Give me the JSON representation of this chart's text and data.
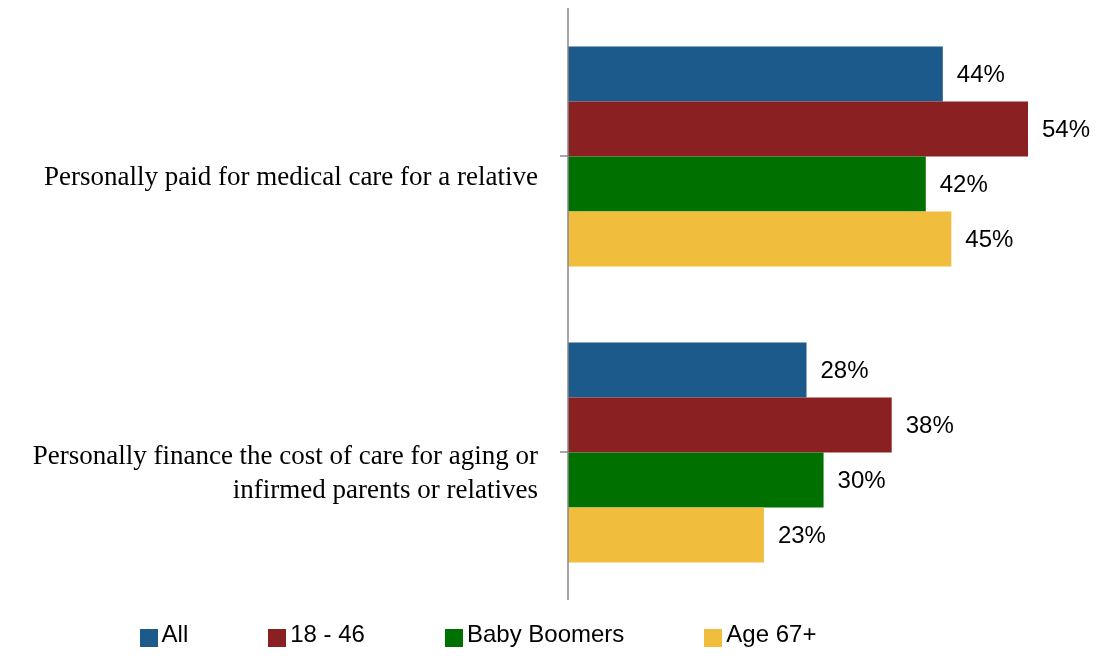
{
  "chart_data": {
    "type": "bar",
    "orientation": "horizontal",
    "categories": [
      "Personally paid for medical care for a relative",
      "Personally finance the cost of care for aging or infirmed parents or relatives"
    ],
    "series": [
      {
        "name": "All",
        "color": "#1b5a8a",
        "values": [
          44,
          28
        ],
        "value_labels": [
          "44%",
          "28%"
        ]
      },
      {
        "name": "18 - 46",
        "color": "#8b2022",
        "values": [
          54,
          38
        ],
        "value_labels": [
          "54%",
          "38%"
        ]
      },
      {
        "name": "Baby Boomers",
        "color": "#007000",
        "values": [
          42,
          30
        ],
        "value_labels": [
          "42%",
          "30%"
        ]
      },
      {
        "name": "Age 67+",
        "color": "#f0bd3c",
        "values": [
          45,
          23
        ],
        "value_labels": [
          "45%",
          "23%"
        ]
      }
    ],
    "legend": "bottom",
    "grid": false,
    "tick_labels": "y"
  }
}
